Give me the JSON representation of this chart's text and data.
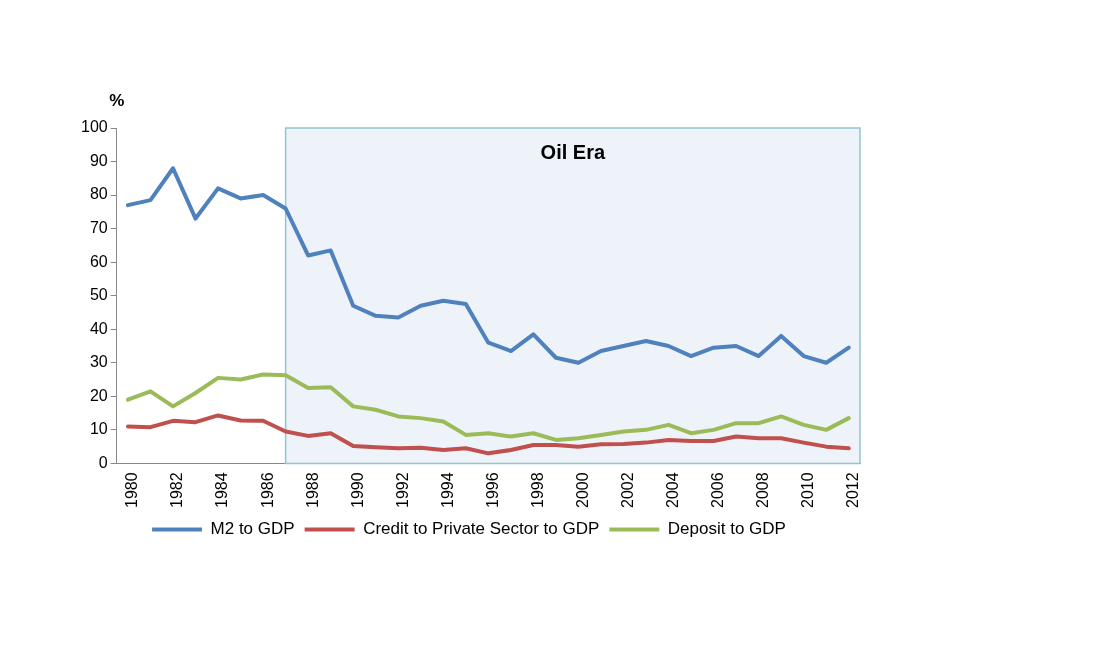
{
  "chart_data": {
    "type": "line",
    "ylabel": "%",
    "x": [
      1980,
      1981,
      1982,
      1983,
      1984,
      1985,
      1986,
      1987,
      1988,
      1989,
      1990,
      1991,
      1992,
      1993,
      1994,
      1995,
      1996,
      1997,
      1998,
      1999,
      2000,
      2001,
      2002,
      2003,
      2004,
      2005,
      2006,
      2007,
      2008,
      2009,
      2010,
      2011,
      2012
    ],
    "series": [
      {
        "name": "M2 to GDP",
        "color": "#4f81bd",
        "values": [
          77,
          78.5,
          88,
          73,
          82,
          79,
          80,
          76,
          62,
          63.5,
          47,
          44,
          43.5,
          47,
          48.5,
          47.5,
          36,
          33.5,
          38.5,
          31.5,
          30,
          33.5,
          35,
          36.5,
          35,
          32,
          34.5,
          35,
          32,
          38,
          32,
          30,
          34.5
        ]
      },
      {
        "name": "Credit to Private Sector to GDP",
        "color": "#c0504d",
        "values": [
          11,
          10.8,
          12.7,
          12.3,
          14.3,
          12.8,
          12.7,
          9.5,
          8.2,
          9,
          5.2,
          4.8,
          4.5,
          4.7,
          4,
          4.5,
          3,
          4,
          5.5,
          5.5,
          5,
          5.7,
          5.8,
          6.2,
          7,
          6.7,
          6.7,
          8,
          7.5,
          7.5,
          6.2,
          5,
          4.5
        ]
      },
      {
        "name": "Deposit to GDP",
        "color": "#9bbb59",
        "values": [
          19,
          21.5,
          17,
          21,
          25.5,
          25,
          26.5,
          26.3,
          22.5,
          22.7,
          17,
          16,
          14,
          13.5,
          12.5,
          8.5,
          9,
          8,
          9,
          7,
          7.5,
          8.5,
          9.5,
          10,
          11.5,
          9,
          10,
          12,
          12,
          14,
          11.5,
          10,
          13.5
        ]
      }
    ],
    "xlim": [
      1979.5,
      2012.5
    ],
    "xticks": [
      1980,
      1982,
      1984,
      1986,
      1988,
      1990,
      1992,
      1994,
      1996,
      1998,
      2000,
      2002,
      2004,
      2006,
      2008,
      2010,
      2012
    ],
    "ylim": [
      0,
      100
    ],
    "yticks": [
      0,
      10,
      20,
      30,
      40,
      50,
      60,
      70,
      80,
      90,
      100
    ],
    "bands": [
      {
        "axis": "x",
        "from": 1987,
        "to": 2012.5,
        "label": "Oil Era",
        "color": "#eef3f9"
      }
    ],
    "grid": false,
    "legend": "bottom",
    "marker": "none",
    "line_style": "solid"
  }
}
